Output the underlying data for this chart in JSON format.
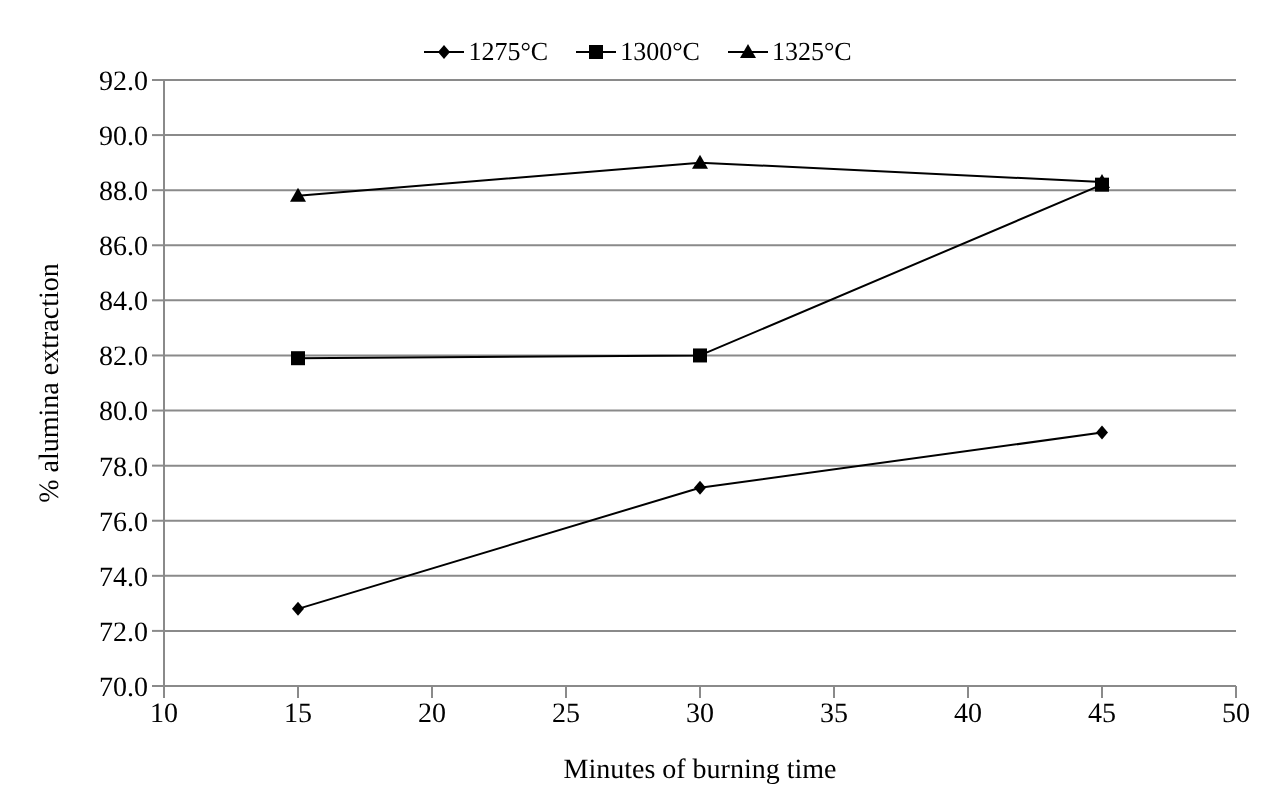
{
  "chart_data": {
    "type": "line",
    "xlabel": "Minutes of burning time",
    "ylabel": "% alumina extraction",
    "x": [
      15,
      30,
      45
    ],
    "series": [
      {
        "name": "1275°C",
        "color": "#000000",
        "marker": "diamond",
        "values": [
          72.8,
          77.2,
          79.2
        ]
      },
      {
        "name": "1300°C",
        "color": "#000000",
        "marker": "square",
        "values": [
          81.9,
          82.0,
          88.2
        ]
      },
      {
        "name": "1325°C",
        "color": "#000000",
        "marker": "triangle",
        "values": [
          87.8,
          89.0,
          88.3
        ]
      }
    ],
    "xlim": [
      10,
      50
    ],
    "xticks": [
      10,
      15,
      20,
      25,
      30,
      35,
      40,
      45,
      50
    ],
    "ylim": [
      70,
      92
    ],
    "yticks": [
      {
        "value": 70,
        "label": "70.0"
      },
      {
        "value": 72,
        "label": "72.0"
      },
      {
        "value": 74,
        "label": "74.0"
      },
      {
        "value": 76,
        "label": "76.0"
      },
      {
        "value": 78,
        "label": "78.0"
      },
      {
        "value": 80,
        "label": "80.0"
      },
      {
        "value": 82,
        "label": "82.0"
      },
      {
        "value": 84,
        "label": "84.0"
      },
      {
        "value": 86,
        "label": "86.0"
      },
      {
        "value": 88,
        "label": "88.0"
      },
      {
        "value": 90,
        "label": "90.0"
      },
      {
        "value": 92,
        "label": "92.0"
      }
    ],
    "grid": "y",
    "legend": "top",
    "line_style": "solid"
  }
}
